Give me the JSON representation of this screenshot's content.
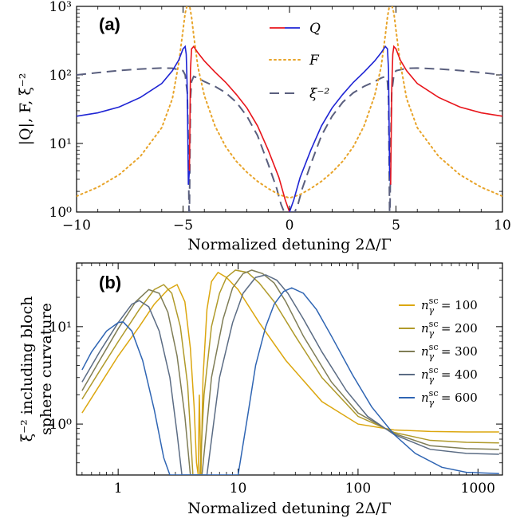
{
  "chart_data": [
    {
      "panel_label": "(a)",
      "type": "line",
      "xlabel": "Normalized detuning 2Δ/Γ",
      "ylabel": "|Q|, F, ξ⁻²",
      "xlim": [
        -10,
        10
      ],
      "ylim": [
        1,
        1000
      ],
      "yscale": "log",
      "x_ticks": [
        "−10",
        "−5",
        "0",
        "5",
        "10"
      ],
      "y_ticks": [
        "10⁰",
        "10¹",
        "10²",
        "10³"
      ],
      "legend_position": "top-center",
      "series": [
        {
          "name": "Q",
          "style": "solid",
          "color_negative": "#e8151b",
          "color_positive": "#1f25d4",
          "x": [
            -10,
            -9,
            -8,
            -7,
            -6,
            -5.5,
            -5.2,
            -5.0,
            -4.9,
            -4.85,
            -4.8,
            -4.75,
            -4.7,
            -4.65,
            -4.6,
            -4.5,
            -4.3,
            -4,
            -3.5,
            -3,
            -2.5,
            -2,
            -1.5,
            -1,
            -0.5,
            -0.2,
            0,
            0.2,
            0.5,
            1,
            1.5,
            2,
            2.5,
            3,
            3.5,
            4,
            4.3,
            4.5,
            4.6,
            4.65,
            4.7,
            4.75,
            4.8,
            4.85,
            4.9,
            5.0,
            5.2,
            5.5,
            6,
            7,
            8,
            9,
            10
          ],
          "y": [
            25,
            28,
            34,
            47,
            75,
            115,
            165,
            240,
            260,
            200,
            60,
            2.5,
            4,
            120,
            240,
            260,
            210,
            160,
            110,
            78,
            52,
            33,
            18,
            8,
            3.2,
            1.5,
            1,
            1.5,
            3.2,
            8,
            18,
            33,
            52,
            78,
            110,
            160,
            210,
            260,
            240,
            120,
            4,
            2.5,
            60,
            200,
            260,
            240,
            165,
            115,
            75,
            47,
            34,
            28,
            25
          ],
          "sign": [
            1,
            1,
            1,
            1,
            1,
            1,
            1,
            1,
            1,
            1,
            1,
            1,
            -1,
            -1,
            -1,
            -1,
            -1,
            -1,
            -1,
            -1,
            -1,
            -1,
            -1,
            -1,
            -1,
            -1,
            1,
            1,
            1,
            1,
            1,
            1,
            1,
            1,
            1,
            1,
            1,
            1,
            1,
            1,
            1,
            -1,
            -1,
            -1,
            -1,
            -1,
            -1,
            -1,
            -1,
            -1,
            -1,
            -1,
            -1
          ]
        },
        {
          "name": "F",
          "style": "dotted",
          "color": "#e8a42a",
          "x": [
            -10,
            -9,
            -8,
            -7,
            -6,
            -5.5,
            -5.2,
            -5,
            -4.9,
            -4.8,
            -4.75,
            -4.7,
            -4.6,
            -4.5,
            -4.3,
            -4,
            -3.5,
            -3,
            -2.5,
            -2,
            -1.5,
            -1,
            -0.5,
            0,
            0.5,
            1,
            1.5,
            2,
            2.5,
            3,
            3.5,
            4,
            4.3,
            4.5,
            4.6,
            4.7,
            4.75,
            4.8,
            4.9,
            5,
            5.2,
            5.5,
            6,
            7,
            8,
            9,
            10
          ],
          "y": [
            1.7,
            2.3,
            3.5,
            6.5,
            17,
            45,
            150,
            450,
            800,
            1050,
            1100,
            1050,
            700,
            380,
            130,
            50,
            18,
            9,
            5.5,
            3.8,
            2.8,
            2.2,
            1.8,
            1.6,
            1.8,
            2.2,
            2.8,
            3.8,
            5.5,
            9,
            18,
            50,
            130,
            380,
            700,
            1050,
            1100,
            1050,
            800,
            450,
            150,
            45,
            17,
            6.5,
            3.5,
            2.3,
            1.7
          ]
        },
        {
          "name": "ξ⁻²",
          "style": "dashed",
          "color": "#5a5f7e",
          "x": [
            -10,
            -9,
            -8,
            -7,
            -6,
            -5.5,
            -5,
            -4.9,
            -4.8,
            -4.75,
            -4.72,
            -4.7,
            -4.65,
            -4.6,
            -4.5,
            -4.3,
            -4,
            -3.5,
            -3,
            -2.5,
            -2,
            -1.5,
            -1,
            -0.6,
            -0.4,
            -0.25,
            -0.15,
            0.15,
            0.25,
            0.4,
            0.6,
            1,
            1.5,
            2,
            2.5,
            3,
            3.5,
            4,
            4.3,
            4.5,
            4.6,
            4.65,
            4.7,
            4.72,
            4.75,
            4.8,
            4.9,
            5,
            5.5,
            6,
            7,
            8,
            9,
            10
          ],
          "y": [
            100,
            108,
            116,
            122,
            126,
            125,
            115,
            100,
            55,
            10,
            1,
            1,
            45,
            80,
            95,
            90,
            80,
            68,
            55,
            40,
            25,
            13,
            5,
            2.2,
            1.3,
            1,
            1,
            1,
            1,
            1.3,
            2.2,
            5,
            13,
            25,
            40,
            55,
            68,
            80,
            90,
            95,
            80,
            45,
            1,
            1,
            10,
            55,
            100,
            115,
            125,
            126,
            122,
            116,
            108,
            100
          ]
        }
      ]
    },
    {
      "panel_label": "(b)",
      "type": "line",
      "xlabel": "Normalized detuning 2Δ/Γ",
      "ylabel_line1": "ξ⁻² including bloch",
      "ylabel_line2": "sphere curvature",
      "xlim": [
        0.45,
        1600
      ],
      "ylim": [
        0.3,
        45
      ],
      "xscale": "log",
      "yscale": "log",
      "x_ticks": [
        "1",
        "10",
        "100",
        "1000"
      ],
      "y_ticks": [
        "10⁰",
        "10¹"
      ],
      "legend_position": "right",
      "series": [
        {
          "name": "n_γ^sc = 100",
          "color": "#dca70f",
          "x": [
            0.5,
            0.7,
            1,
            1.5,
            2,
            2.6,
            3.1,
            3.6,
            4.0,
            4.3,
            4.5,
            4.65,
            4.75,
            4.9,
            5.1,
            5.5,
            6.0,
            6.8,
            8,
            10,
            15,
            25,
            50,
            100,
            200,
            400,
            800,
            1500
          ],
          "y": [
            1.3,
            2.5,
            5,
            10,
            17,
            24,
            27,
            18,
            6,
            1.5,
            0.4,
            0.3,
            2.0,
            0.3,
            3,
            15,
            29,
            36,
            32,
            24,
            11,
            4.5,
            1.7,
            1.0,
            0.87,
            0.84,
            0.83,
            0.83
          ]
        },
        {
          "name": "n_γ^sc = 200",
          "color": "#b09a2a",
          "x": [
            0.5,
            0.7,
            1,
            1.5,
            2,
            2.4,
            2.8,
            3.3,
            3.8,
            4.2,
            4.5,
            4.8,
            5.2,
            6,
            7,
            8,
            9.5,
            12,
            15,
            20,
            30,
            50,
            100,
            200,
            400,
            800,
            1500
          ],
          "y": [
            1.8,
            3.5,
            7,
            15,
            24,
            27,
            22,
            10,
            2.5,
            0.3,
            0.3,
            0.3,
            2,
            10,
            22,
            32,
            38,
            36,
            28,
            18,
            8,
            3,
            1.2,
            0.82,
            0.68,
            0.65,
            0.64
          ]
        },
        {
          "name": "n_γ^sc = 300",
          "color": "#7f7d56",
          "x": [
            0.5,
            0.7,
            1,
            1.4,
            1.8,
            2.2,
            2.6,
            3.1,
            3.6,
            4.0,
            4.2,
            5.0,
            6,
            7.5,
            9,
            11,
            13,
            16,
            20,
            25,
            35,
            60,
            100,
            200,
            400,
            800,
            1500
          ],
          "y": [
            2.2,
            4.5,
            9.5,
            18,
            24,
            22,
            14,
            5,
            1.2,
            0.3,
            0.3,
            0.3,
            3,
            12,
            25,
            35,
            38,
            35,
            28,
            18,
            8,
            2.7,
            1.3,
            0.8,
            0.6,
            0.56,
            0.55
          ]
        },
        {
          "name": "n_γ^sc = 400",
          "color": "#5b6c84",
          "x": [
            0.5,
            0.7,
            1,
            1.3,
            1.5,
            1.8,
            2.2,
            2.7,
            3.1,
            3.4,
            3.6,
            5.5,
            7,
            9,
            11,
            14,
            17,
            21,
            26,
            35,
            50,
            80,
            120,
            200,
            400,
            800,
            1500
          ],
          "y": [
            2.7,
            5.5,
            11,
            17,
            18.5,
            16,
            9,
            3,
            0.8,
            0.3,
            0.3,
            0.3,
            3,
            11,
            22,
            32,
            34,
            30,
            22,
            12,
            5.5,
            2.2,
            1.2,
            0.78,
            0.55,
            0.5,
            0.49
          ]
        },
        {
          "name": "n_γ^sc = 600",
          "color": "#2f65b3",
          "x": [
            0.5,
            0.6,
            0.8,
            1.0,
            1.1,
            1.3,
            1.6,
            2.0,
            2.4,
            2.7,
            10,
            12,
            14,
            17,
            20,
            24,
            28,
            35,
            45,
            60,
            90,
            130,
            200,
            300,
            500,
            800,
            1500
          ],
          "y": [
            3.6,
            5.5,
            9,
            11,
            11.2,
            9,
            4.5,
            1.4,
            0.45,
            0.3,
            0.3,
            1.2,
            4,
            10,
            17,
            23,
            25,
            22,
            15,
            8,
            3.2,
            1.5,
            0.78,
            0.5,
            0.36,
            0.32,
            0.31
          ]
        }
      ]
    }
  ]
}
